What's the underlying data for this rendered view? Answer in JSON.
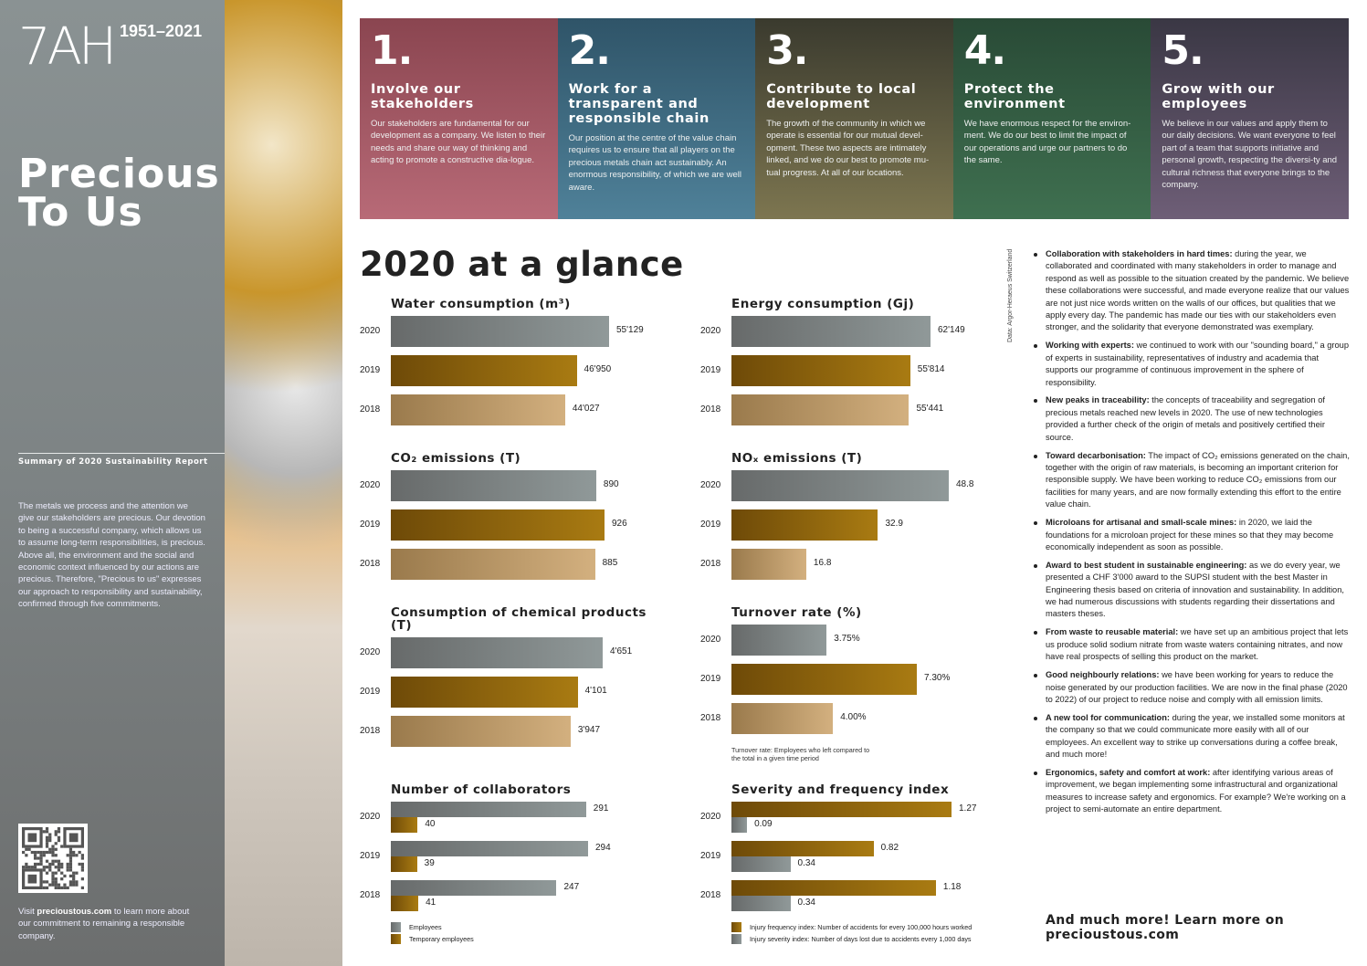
{
  "left": {
    "logo": "7AH",
    "years": "1951–2021",
    "title_line1": "Precious",
    "title_line2": "To Us",
    "summary": "Summary of 2020 Sustainability Report",
    "intro": "The metals we process and the attention we give our stakeholders are precious. Our devotion to being a successful company, which allows us to assume long-term responsibilities, is precious. Above all, the environment and the social and economic context influenced by our actions are precious. Therefore, \"Precious to us\" expresses our approach to responsibility and sustainability, confirmed through five commitments.",
    "visit_pre": "Visit ",
    "visit_link": "precioustous.com",
    "visit_post": " to learn more about our commitment to remaining a responsible company."
  },
  "commitments": [
    {
      "num": "1.",
      "title": "Involve our stakeholders",
      "text": "Our stakeholders are fundamental for our development as a company. We listen to their needs and share our way of thinking and acting to promote a constructive dia-logue.",
      "color_top": "#8a4550",
      "color_bottom": "#b86a77"
    },
    {
      "num": "2.",
      "title": "Work for a transparent and responsible chain",
      "text": "Our position at the centre of the value chain requires us to ensure that all players on the precious metals chain act sustainably. An enormous responsibility, of which we are well aware.",
      "color_top": "#2f5468",
      "color_bottom": "#4f8199"
    },
    {
      "num": "3.",
      "title": "Contribute to local development",
      "text": "The growth of the community in which we operate is essential for our mutual devel-opment. These two aspects are intimately linked, and we do our best to promote mu-tual progress. At all of our locations.",
      "color_top": "#3a3a2e",
      "color_bottom": "#7d7650"
    },
    {
      "num": "4.",
      "title": "Protect the environment",
      "text": "We have enormous respect for the environ-ment. We do our best to limit the impact of our operations and urge our partners to do the same.",
      "color_top": "#294a36",
      "color_bottom": "#3f7050"
    },
    {
      "num": "5.",
      "title": "Grow with our employees",
      "text": "We believe in our values and apply them to our daily decisions. We want everyone to feel part of a team that supports initiative and personal growth, respecting the diversi-ty and cultural richness that everyone brings to the company.",
      "color_top": "#3a3744",
      "color_bottom": "#6e5e77"
    }
  ],
  "glance_title": "2020 at a glance",
  "colors": {
    "gray": [
      "#676a6a",
      "#909999"
    ],
    "gold_dark": [
      "#6e4a08",
      "#a97b12"
    ],
    "gold_light": [
      "#9a7a4c",
      "#d3b07f"
    ]
  },
  "chart_data": [
    {
      "type": "bar",
      "title": "Water consumption (m³)",
      "categories": [
        "2020",
        "2019",
        "2018"
      ],
      "values": [
        55129,
        46950,
        44027
      ],
      "labels": [
        "55'129",
        "46'950",
        "44'027"
      ]
    },
    {
      "type": "bar",
      "title": "Energy consumption (Gj)",
      "categories": [
        "2020",
        "2019",
        "2018"
      ],
      "values": [
        62149,
        55814,
        55441
      ],
      "labels": [
        "62'149",
        "55'814",
        "55'441"
      ]
    },
    {
      "type": "bar",
      "title": "CO₂ emissions (T)",
      "categories": [
        "2020",
        "2019",
        "2018"
      ],
      "values": [
        890,
        926,
        885
      ],
      "labels": [
        "890",
        "926",
        "885"
      ]
    },
    {
      "type": "bar",
      "title": "NOₓ emissions  (T)",
      "categories": [
        "2020",
        "2019",
        "2018"
      ],
      "values": [
        48.8,
        32.9,
        16.8
      ],
      "labels": [
        "48.8",
        "32.9",
        "16.8"
      ]
    },
    {
      "type": "bar",
      "title": "Consumption of chemical products (T)",
      "categories": [
        "2020",
        "2019",
        "2018"
      ],
      "values": [
        4651,
        4101,
        3947
      ],
      "labels": [
        "4'651",
        "4'101",
        "3'947"
      ]
    },
    {
      "type": "bar",
      "title": "Turnover rate (%)",
      "categories": [
        "2020",
        "2019",
        "2018"
      ],
      "values": [
        3.75,
        7.3,
        4.0
      ],
      "labels": [
        "3.75%",
        "7.30%",
        "4.00%"
      ],
      "note": "Turnover rate: Employees who left compared to the total in a given time period"
    },
    {
      "type": "bar",
      "title": "Number of collaborators",
      "categories": [
        "2020",
        "2019",
        "2018"
      ],
      "series": [
        {
          "name": "Employees",
          "values": [
            291,
            294,
            247
          ],
          "color": "gray"
        },
        {
          "name": "Temporary employees",
          "values": [
            40,
            39,
            41
          ],
          "color": "gold_dark"
        }
      ]
    },
    {
      "type": "bar",
      "title": "Severity and frequency index",
      "categories": [
        "2020",
        "2019",
        "2018"
      ],
      "series": [
        {
          "name": "Injury frequency index: Number of accidents for every 100,000 hours worked",
          "values": [
            1.27,
            0.82,
            1.18
          ],
          "color": "gold_dark"
        },
        {
          "name": "Injury severity index: Number of days lost due to accidents every 1,000 days",
          "values": [
            0.09,
            0.34,
            0.34
          ],
          "color": "gray"
        }
      ]
    }
  ],
  "source": "Data: Argor-Heraeus Switzerland",
  "highlights": [
    {
      "bold": "Collaboration with stakeholders in hard times:",
      "text": " during the year, we collaborated and coordinated with many stakeholders in order to manage and respond as well as possible to the situation created by the pandemic. We believe these collaborations were successful, and made everyone realize that our values are not just nice words written on the walls of our offices, but qualities that we apply every day. The pandemic has made our ties with our stakeholders even stronger, and the solidarity that everyone demonstrated was exemplary."
    },
    {
      "bold": "Working with experts:",
      "text": " we continued to work with our \"sounding board,\" a group of experts in sustainability, representatives of industry and academia that supports our programme of continuous improvement in the sphere of responsibility."
    },
    {
      "bold": "New peaks in traceability:",
      "text": " the concepts of traceability and segregation of precious metals reached new levels in 2020. The use of new technologies provided a further check of the origin of metals and positively certified their source."
    },
    {
      "bold": "Toward decarbonisation:",
      "text": " The impact of CO₂ emissions generated on the chain, together with the origin of raw materials, is becoming an important criterion for responsible supply. We have been working to reduce CO₂ emissions from our facilities for many years, and are now formally extending this effort to the entire value chain."
    },
    {
      "bold": "Microloans for artisanal and small-scale mines:",
      "text": " in 2020, we laid the foundations for a microloan project for these mines so that they may become economically independent as soon as possible."
    },
    {
      "bold": "Award to best student in sustainable engineering:",
      "text": " as we do every year, we presented a CHF 3'000 award to the SUPSI student with the best Master in Engineering thesis based on criteria of innovation and sustainability. In addition, we had numerous discussions with students regarding their dissertations and masters theses."
    },
    {
      "bold": "From waste to reusable material:",
      "text": " we have set up an ambitious project that lets us produce solid sodium nitrate from waste waters containing nitrates, and now have real prospects of selling this product on the market."
    },
    {
      "bold": "Good neighbourly relations:",
      "text": " we have been working for years to reduce the noise generated by our production facilities. We are now in the final phase (2020 to 2022) of our project to reduce noise and comply with all emission limits."
    },
    {
      "bold": "A new tool for communication:",
      "text": " during the year, we installed some monitors at the company so that we could communicate more easily with all of our employees. An excellent way to strike up conversations during a coffee break, and much more!"
    },
    {
      "bold": "Ergonomics, safety and comfort at work:",
      "text": " after  identifying various areas of improvement, we began implementing some infrastructural and organizational measures to increase safety and ergonomics. For example? We're working on a project to semi-automate an entire department."
    }
  ],
  "more": "And much more! Learn more on precioustous.com"
}
